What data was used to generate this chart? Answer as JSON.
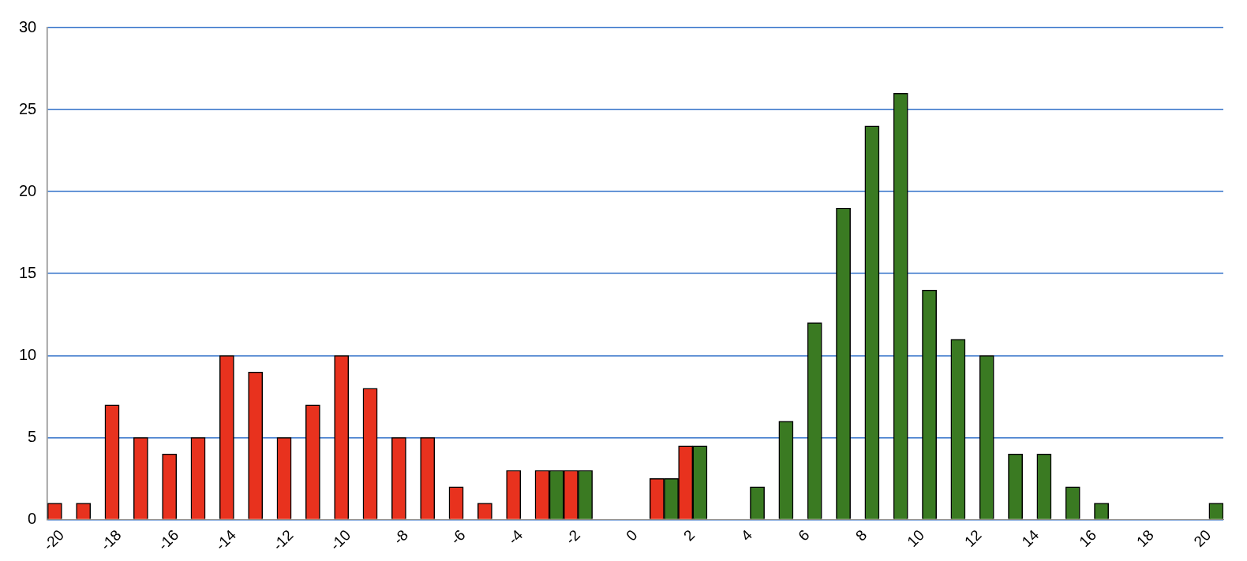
{
  "chart_data": {
    "type": "bar",
    "categories": [
      "-20",
      null,
      "-18",
      null,
      "-16",
      null,
      "-14",
      null,
      "-12",
      null,
      "-10",
      null,
      "-8",
      null,
      "-6",
      null,
      "-4",
      null,
      "-2",
      null,
      "0",
      null,
      "2",
      null,
      "4",
      null,
      "6",
      null,
      "8",
      null,
      "10",
      null,
      "12",
      null,
      "14",
      null,
      "16",
      null,
      "18",
      null,
      "20"
    ],
    "series": [
      {
        "color": "#e8321e",
        "values": [
          1,
          1,
          7,
          5,
          4,
          5,
          10,
          9,
          5,
          7,
          10,
          8,
          5,
          5,
          2,
          1,
          3,
          3,
          3,
          0,
          0,
          2.5,
          4.5,
          0,
          0,
          0,
          0,
          0,
          0,
          0,
          0,
          0,
          0,
          0,
          0,
          0,
          0,
          0,
          0,
          0,
          0
        ]
      },
      {
        "color": "#3a7a22",
        "values": [
          0,
          0,
          0,
          0,
          0,
          0,
          0,
          0,
          0,
          0,
          0,
          0,
          0,
          0,
          0,
          0,
          0,
          3,
          3,
          0,
          0,
          2.5,
          4.5,
          0,
          2,
          6,
          12,
          19,
          24,
          26,
          14,
          11,
          10,
          4,
          4,
          2,
          1,
          0,
          0,
          0,
          1
        ]
      }
    ],
    "ylim": [
      0,
      30
    ],
    "yticks": [
      0,
      5,
      10,
      15,
      20,
      25,
      30
    ],
    "grid": "y",
    "legend": false
  }
}
